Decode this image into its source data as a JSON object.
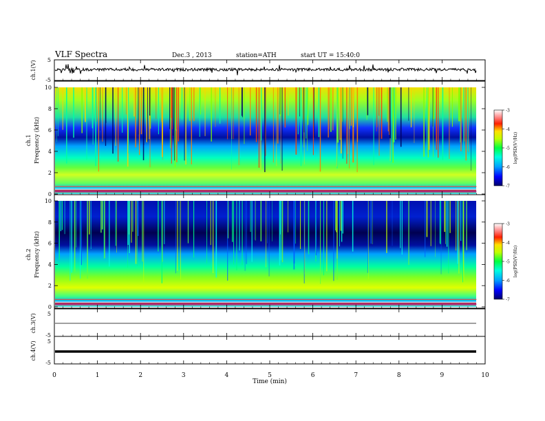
{
  "header": {
    "title": "VLF  Spectra",
    "date": "Dec.3  , 2013",
    "station": "station=ATH",
    "start": "start  UT  =   15:40:0"
  },
  "chart_data": [
    {
      "type": "line",
      "name": "ch1-waveform",
      "ylabel": "ch.1(V)",
      "ylim": [
        -5,
        5
      ],
      "yticks": [
        "5",
        "-5"
      ],
      "description_level": 0.3
    },
    {
      "type": "heatmap",
      "name": "ch1-spectrogram",
      "ylabel_channel": "ch.1",
      "ylabel": "Frequency  (kHz)",
      "ylim": [
        0,
        10
      ],
      "yticks": [
        "0",
        "2",
        "4",
        "6",
        "8",
        "10"
      ],
      "colorbar": {
        "label": "log(PSD(V²/Hz)",
        "ticks": [
          "-3",
          "-4",
          "-5",
          "-6",
          "-7"
        ],
        "range": [
          -7,
          -3
        ]
      }
    },
    {
      "type": "heatmap",
      "name": "ch2-spectrogram",
      "ylabel_channel": "ch.2",
      "ylabel": "Frequency  (kHz)",
      "ylim": [
        0,
        10
      ],
      "yticks": [
        "0",
        "2",
        "4",
        "6",
        "8",
        "10"
      ],
      "colorbar": {
        "label": "log(PSD(V²/Hz)",
        "ticks": [
          "-3",
          "-4",
          "-5",
          "-6",
          "-7"
        ],
        "range": [
          -7,
          -3
        ]
      }
    },
    {
      "type": "line",
      "name": "ch3-waveform",
      "ylabel": "ch.3(V)",
      "ylim": [
        -5,
        5
      ],
      "yticks": [
        "5",
        "-5"
      ]
    },
    {
      "type": "line",
      "name": "ch4-waveform",
      "ylabel": "ch.4(V)",
      "ylim": [
        -5,
        5
      ],
      "yticks": [
        "5",
        "-5"
      ]
    }
  ],
  "xaxis": {
    "label": "Time  (min)",
    "range": [
      0,
      10
    ],
    "ticks": [
      "0",
      "1",
      "2",
      "3",
      "4",
      "5",
      "6",
      "7",
      "8",
      "9",
      "10"
    ],
    "data_end": 9.8
  }
}
